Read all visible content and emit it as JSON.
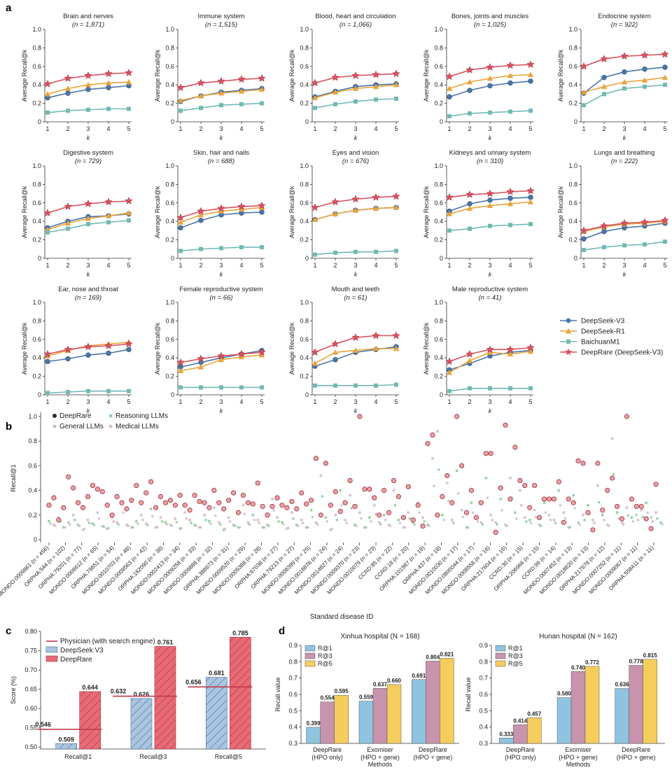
{
  "panel_labels": {
    "a": "a",
    "b": "b",
    "c": "c",
    "d": "d"
  },
  "colors": {
    "deepseek_v3": "#4a76a8",
    "deepseek_r1": "#e8a43c",
    "baichuan": "#72b9b4",
    "deeprare": "#d9505e",
    "physician": "#c0394b",
    "deeprare_bar": "#e86a75",
    "deepseek_bar": "#a9c5e0",
    "r1_bar": "#8fc3e0",
    "r3_bar": "#c893ad",
    "r5_bar": "#f5cd5c"
  },
  "chart_data": [
    {
      "type": "line",
      "panel": "a",
      "xlabel": "k",
      "ylabel": "Average Recall@k",
      "x": [
        1,
        2,
        3,
        4,
        5
      ],
      "ylim": [
        0,
        1.0
      ],
      "yticks": [
        "0",
        "0.2",
        "0.4",
        "0.6",
        "0.8",
        "1.0"
      ],
      "legend": [
        "DeepSeek-V3",
        "DeepSeek-R1",
        "BaichuanM1",
        "DeepRare (DeepSeek-V3)"
      ],
      "legend_placement": "right",
      "subplots": [
        {
          "title": "Brain and nerves",
          "n": "(n = 1,871)",
          "v3": [
            0.26,
            0.31,
            0.35,
            0.37,
            0.39
          ],
          "r1": [
            0.3,
            0.36,
            0.4,
            0.42,
            0.43
          ],
          "bc": [
            0.1,
            0.12,
            0.13,
            0.14,
            0.14
          ],
          "dr": [
            0.41,
            0.47,
            0.5,
            0.52,
            0.53
          ]
        },
        {
          "title": "Immune system",
          "n": "(n = 1,515)",
          "v3": [
            0.22,
            0.28,
            0.32,
            0.34,
            0.36
          ],
          "r1": [
            0.23,
            0.28,
            0.31,
            0.33,
            0.35
          ],
          "bc": [
            0.12,
            0.15,
            0.18,
            0.19,
            0.2
          ],
          "dr": [
            0.37,
            0.42,
            0.44,
            0.46,
            0.47
          ]
        },
        {
          "title": "Blood, heart and circulation",
          "n": "(n = 1,066)",
          "v3": [
            0.27,
            0.33,
            0.38,
            0.4,
            0.41
          ],
          "r1": [
            0.26,
            0.32,
            0.36,
            0.38,
            0.4
          ],
          "bc": [
            0.15,
            0.19,
            0.22,
            0.24,
            0.25
          ],
          "dr": [
            0.42,
            0.48,
            0.5,
            0.51,
            0.52
          ]
        },
        {
          "title": "Bones, joints and muscles",
          "n": "(n = 1,025)",
          "v3": [
            0.27,
            0.34,
            0.39,
            0.42,
            0.44
          ],
          "r1": [
            0.36,
            0.43,
            0.47,
            0.5,
            0.51
          ],
          "bc": [
            0.06,
            0.09,
            0.1,
            0.11,
            0.12
          ],
          "dr": [
            0.49,
            0.56,
            0.59,
            0.61,
            0.62
          ]
        },
        {
          "title": "Endocrine system",
          "n": "(n = 922)",
          "v3": [
            0.31,
            0.48,
            0.54,
            0.57,
            0.59
          ],
          "r1": [
            0.32,
            0.38,
            0.43,
            0.45,
            0.48
          ],
          "bc": [
            0.18,
            0.3,
            0.36,
            0.38,
            0.4
          ],
          "dr": [
            0.6,
            0.68,
            0.71,
            0.72,
            0.73
          ]
        },
        {
          "title": "Digestive system",
          "n": "(n = 729)",
          "v3": [
            0.33,
            0.4,
            0.45,
            0.46,
            0.48
          ],
          "r1": [
            0.31,
            0.38,
            0.43,
            0.46,
            0.49
          ],
          "bc": [
            0.28,
            0.32,
            0.37,
            0.39,
            0.41
          ],
          "dr": [
            0.49,
            0.56,
            0.59,
            0.61,
            0.62
          ]
        },
        {
          "title": "Skin, hair and nails",
          "n": "(n = 688)",
          "v3": [
            0.33,
            0.41,
            0.47,
            0.49,
            0.5
          ],
          "r1": [
            0.39,
            0.47,
            0.51,
            0.53,
            0.55
          ],
          "bc": [
            0.08,
            0.1,
            0.11,
            0.12,
            0.12
          ],
          "dr": [
            0.44,
            0.51,
            0.54,
            0.56,
            0.57
          ]
        },
        {
          "title": "Eyes and vision",
          "n": "(n = 676)",
          "v3": [
            0.42,
            0.48,
            0.52,
            0.54,
            0.55
          ],
          "r1": [
            0.42,
            0.48,
            0.52,
            0.54,
            0.55
          ],
          "bc": [
            0.04,
            0.06,
            0.07,
            0.07,
            0.08
          ],
          "dr": [
            0.55,
            0.61,
            0.64,
            0.66,
            0.67
          ]
        },
        {
          "title": "Kidneys and urinary system",
          "n": "(n = 310)",
          "v3": [
            0.51,
            0.59,
            0.63,
            0.65,
            0.66
          ],
          "r1": [
            0.48,
            0.54,
            0.57,
            0.59,
            0.61
          ],
          "bc": [
            0.3,
            0.32,
            0.35,
            0.36,
            0.37
          ],
          "dr": [
            0.66,
            0.69,
            0.7,
            0.72,
            0.73
          ]
        },
        {
          "title": "Lungs and breathing",
          "n": "(n = 222)",
          "v3": [
            0.21,
            0.29,
            0.33,
            0.35,
            0.38
          ],
          "r1": [
            0.29,
            0.34,
            0.37,
            0.38,
            0.4
          ],
          "bc": [
            0.09,
            0.12,
            0.14,
            0.15,
            0.18
          ],
          "dr": [
            0.3,
            0.35,
            0.38,
            0.39,
            0.41
          ]
        },
        {
          "title": "Ear, nose and throat",
          "n": "(n = 169)",
          "v3": [
            0.36,
            0.39,
            0.43,
            0.45,
            0.49
          ],
          "r1": [
            0.42,
            0.48,
            0.53,
            0.55,
            0.57
          ],
          "bc": [
            0.02,
            0.03,
            0.04,
            0.04,
            0.04
          ],
          "dr": [
            0.44,
            0.49,
            0.52,
            0.53,
            0.55
          ]
        },
        {
          "title": "Female reproductive system",
          "n": "(n = 66)",
          "v3": [
            0.3,
            0.35,
            0.4,
            0.44,
            0.48
          ],
          "r1": [
            0.26,
            0.3,
            0.38,
            0.41,
            0.43
          ],
          "bc": [
            0.08,
            0.08,
            0.08,
            0.08,
            0.08
          ],
          "dr": [
            0.35,
            0.39,
            0.42,
            0.44,
            0.46
          ]
        },
        {
          "title": "Mouth and teeth",
          "n": "(n = 61)",
          "v3": [
            0.31,
            0.38,
            0.46,
            0.49,
            0.52
          ],
          "r1": [
            0.34,
            0.46,
            0.48,
            0.5,
            0.5
          ],
          "bc": [
            0.1,
            0.1,
            0.1,
            0.1,
            0.11
          ],
          "dr": [
            0.46,
            0.55,
            0.62,
            0.64,
            0.64
          ]
        },
        {
          "title": "Male reproductive system",
          "n": "(n = 41)",
          "v3": [
            0.27,
            0.34,
            0.42,
            0.46,
            0.48
          ],
          "r1": [
            0.24,
            0.37,
            0.46,
            0.44,
            0.47
          ],
          "bc": [
            0.04,
            0.07,
            0.07,
            0.07,
            0.07
          ],
          "dr": [
            0.36,
            0.44,
            0.49,
            0.49,
            0.51
          ]
        }
      ]
    },
    {
      "type": "scatter",
      "panel": "b",
      "xlabel": "Standard disease ID",
      "ylabel": "Recall@1",
      "ylim": [
        0,
        1.0
      ],
      "yticks": [
        "0",
        "0.2",
        "0.4",
        "0.6",
        "0.8",
        "1.0"
      ],
      "legend": [
        "DeepRare",
        "Reasoning LLMs",
        "General LLMs",
        "Medical LLMs"
      ],
      "categories": [
        "MONDO:0009861 (n = 456)",
        "ORPHA:544 (n = 102)",
        "ORPHA:79201 (n = 77)",
        "MONDO:0009612 (n = 65)",
        "ORPHA:79651 (n = 54)",
        "MONDO:0010703 (n = 48)",
        "MONDO:0009563 (n = 42)",
        "ORPHA:182090 (n = 38)",
        "MONDO:0002413 (n = 34)",
        "MONDO:0009258 (n = 33)",
        "MONDO:0009888 (n = 32)",
        "ORPHA:388673 (n = 31)",
        "MONDO:0009520 (n = 29)",
        "MONDO:0005388 (n = 28)",
        "ORPHA:67038 (n = 27)",
        "ORPHA:79213 (n = 27)",
        "MONDO:0008399 (n = 25)",
        "MONDO:0018876 (n = 24)",
        "MONDO:0014827 (n = 24)",
        "MONDO:0009370 (n = 23)",
        "MONDO:0010079 (n = 23)",
        "CCRD:85 (n = 22)",
        "CCRD:18 (n = 20)",
        "ORPHA:101987 (n = 19)",
        "ORPHA:437 (n = 18)",
        "MONDO:0010030 (n = 17)",
        "MONDO:0800044 (n = 17)",
        "MONDO:0008558 (n = 16)",
        "ORPHA:217604 (n = 16)",
        "CCRD:30 (n = 15)",
        "ORPHA:206966 (n = 15)",
        "CCRD:99 (n = 14)",
        "MONDO:0007452 (n = 13)",
        "MONDO:0018820 (n = 13)",
        "ORPHA:217678 (n = 12)",
        "MONDO:0007252 (n = 11)",
        "MONDO:0009067 (n = 11)",
        "ORPHA:558411 (n = 11)"
      ],
      "deeprare": [
        0.28,
        0.34,
        0.16,
        0.26,
        0.51,
        0.42,
        0.3,
        0.26,
        0.35,
        0.44,
        0.41,
        0.39,
        0.28,
        0.2,
        0.35,
        0.3,
        0.25,
        0.32,
        0.44,
        0.3,
        0.38,
        0.47,
        0.26,
        0.35,
        0.3,
        0.32,
        0.28,
        0.36,
        0.28,
        0.24,
        0.36,
        0.31,
        0.3,
        0.26,
        0.4,
        0.3,
        0.25,
        0.32,
        0.38,
        0.22,
        0.36,
        0.3,
        0.29,
        0.46,
        0.27,
        0.2,
        0.27,
        0.34,
        0.28,
        0.26,
        0.31,
        0.25,
        0.38,
        0.29,
        0.32,
        0.66,
        0.2,
        0.62,
        0.28,
        0.39,
        0.23,
        0.3,
        0.48,
        0.27,
        1.0,
        0.41,
        0.41,
        0.34,
        0.2,
        0.4,
        0.22,
        0.48,
        0.35,
        0.18,
        0.43,
        0.16,
        0.28,
        0.11,
        0.78,
        0.85,
        0.2,
        0.35,
        0.52,
        0.3,
        1.0,
        0.6,
        0.22,
        0.4,
        0.18,
        0.3,
        0.7,
        0.7,
        0.06,
        0.42,
        0.93,
        0.33,
        0.75,
        0.48,
        0.44,
        0.26,
        0.44,
        0.18,
        0.33,
        0.33,
        0.33,
        0.47,
        0.14,
        0.33,
        0.3,
        0.64,
        0.62,
        0.22,
        0.08,
        0.62,
        0.24,
        0.4,
        0.5,
        0.27,
        0.17,
        1.0,
        0.33,
        0.27,
        0.27,
        0.17,
        0.09,
        0.45
      ],
      "others": [
        0.15,
        0.12,
        0.18,
        0.1,
        0.14,
        0.2,
        0.12,
        0.08,
        0.16,
        0.13,
        0.22,
        0.11,
        0.09,
        0.18,
        0.14,
        0.3,
        0.12,
        0.1,
        0.15,
        0.2,
        0.13,
        0.25,
        0.1,
        0.18,
        0.14,
        0.12,
        0.17,
        0.09,
        0.22,
        0.16,
        0.12,
        0.1,
        0.2,
        0.15,
        0.26,
        0.14,
        0.08,
        0.18,
        0.12,
        0.1,
        0.28,
        0.14,
        0.2,
        0.16,
        0.1,
        0.12,
        0.33,
        0.18,
        0.14,
        0.09,
        0.22,
        0.12,
        0.16,
        0.1,
        0.24,
        0.14,
        0.52,
        0.18,
        0.08,
        0.2,
        0.4,
        0.16,
        0.36,
        0.12,
        0.22,
        0.1,
        0.18,
        0.28,
        0.14,
        0.2,
        0.12,
        0.4,
        0.16,
        0.1,
        0.22,
        0.14,
        0.3,
        0.18,
        0.12,
        0.66,
        0.88,
        0.2,
        0.46,
        0.16,
        0.56,
        0.24,
        0.1,
        0.3,
        0.18,
        0.14,
        0.5,
        0.2,
        0.14,
        0.33,
        0.12,
        0.5,
        0.22,
        0.4,
        0.18,
        0.16,
        0.24,
        0.12,
        0.3,
        0.2,
        0.16,
        0.4,
        0.22,
        0.1,
        0.36,
        0.14,
        0.2,
        0.28,
        0.16,
        0.44,
        0.2,
        0.12,
        0.82,
        0.22,
        0.14,
        0.26,
        0.18,
        0.2,
        0.24,
        0.3,
        0.18,
        0.22,
        0.14
      ]
    },
    {
      "type": "bar",
      "panel": "c",
      "ylabel": "Score (%)",
      "ylim": [
        0.495,
        0.8
      ],
      "yticks": [
        "0.50",
        "0.55",
        "0.60",
        "0.65",
        "0.70",
        "0.75",
        "0.80"
      ],
      "categories": [
        "Recall@1",
        "Recall@3",
        "Recall@5"
      ],
      "legend": [
        "Physician (with search engine)",
        "DeepSeek V3",
        "DeepRare"
      ],
      "physician": [
        0.546,
        0.632,
        0.656
      ],
      "physician_labels": [
        "0.546",
        "0.632",
        "0.656"
      ],
      "series": [
        {
          "name": "DeepSeek V3",
          "values": [
            0.509,
            0.626,
            0.681
          ],
          "labels": [
            "0.509",
            "0.626",
            "0.681"
          ]
        },
        {
          "name": "DeepRare",
          "values": [
            0.644,
            0.761,
            0.785
          ],
          "labels": [
            "0.644",
            "0.761",
            "0.785"
          ]
        }
      ]
    },
    {
      "type": "bar",
      "panel": "d",
      "title": "Xinhua hospital (N = 168)",
      "xlabel": "Methods",
      "ylabel": "Recall value",
      "ylim": [
        0.3,
        0.9
      ],
      "yticks": [
        "0.3",
        "0.4",
        "0.5",
        "0.6",
        "0.7",
        "0.8",
        "0.9"
      ],
      "categories": [
        [
          "DeepRare",
          "(HPO only)"
        ],
        [
          "Exomiser",
          "(HPO + gene)"
        ],
        [
          "DeepRare",
          "(HPO + gene)"
        ]
      ],
      "legend": [
        "R@1",
        "R@3",
        "R@5"
      ],
      "series": [
        {
          "name": "R@1",
          "values": [
            0.399,
            0.559,
            0.691
          ],
          "labels": [
            "0.399",
            "0.559",
            "0.691"
          ]
        },
        {
          "name": "R@3",
          "values": [
            0.554,
            0.637,
            0.804
          ],
          "labels": [
            "0.554",
            "0.637",
            "0.804"
          ]
        },
        {
          "name": "R@5",
          "values": [
            0.595,
            0.66,
            0.821
          ],
          "labels": [
            "0.595",
            "0.660",
            "0.821"
          ]
        }
      ]
    },
    {
      "type": "bar",
      "panel": "d",
      "title": "Hunan hospital (N = 162)",
      "xlabel": "Methods",
      "ylabel": "Recall value",
      "ylim": [
        0.3,
        0.9
      ],
      "yticks": [
        "0.3",
        "0.4",
        "0.5",
        "0.6",
        "0.7",
        "0.8",
        "0.9"
      ],
      "categories": [
        [
          "DeepRare",
          "(HPO only)"
        ],
        [
          "Exomiser",
          "(HPO + gene)"
        ],
        [
          "DeepRare",
          "(HPO + gene)"
        ]
      ],
      "legend": [
        "R@1",
        "R@3",
        "R@5"
      ],
      "series": [
        {
          "name": "R@1",
          "values": [
            0.333,
            0.58,
            0.636
          ],
          "labels": [
            "0.333",
            "0.580",
            "0.636"
          ]
        },
        {
          "name": "R@3",
          "values": [
            0.414,
            0.74,
            0.778
          ],
          "labels": [
            "0.414",
            "0.740",
            "0.778"
          ]
        },
        {
          "name": "R@5",
          "values": [
            0.457,
            0.772,
            0.815
          ],
          "labels": [
            "0.457",
            "0.772",
            "0.815"
          ]
        }
      ]
    }
  ]
}
